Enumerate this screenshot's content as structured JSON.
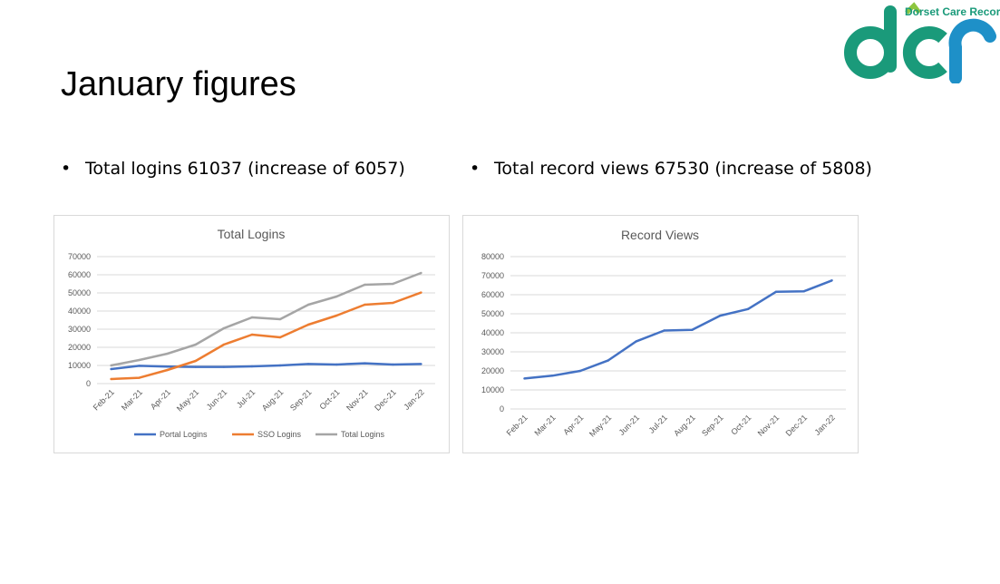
{
  "slide": {
    "title": "January figures",
    "bullets": [
      "Total logins 61037 (increase of 6057)",
      "Total record views 67530 (increase of 5808)"
    ],
    "bullet_marker": "•"
  },
  "logo": {
    "text": "Dorset Care Record",
    "colors": {
      "primary": "#1a9a7a",
      "secondary": "#1e90c8",
      "accent": "#8dc63f"
    }
  },
  "chart_data": [
    {
      "type": "line",
      "title": "Total Logins",
      "categories": [
        "Feb-21",
        "Mar-21",
        "Apr-21",
        "May-21",
        "Jun-21",
        "Jul-21",
        "Aug-21",
        "Sep-21",
        "Oct-21",
        "Nov-21",
        "Dec-21",
        "Jan-22"
      ],
      "ylim": [
        0,
        70000
      ],
      "yticks": [
        0,
        10000,
        20000,
        30000,
        40000,
        50000,
        60000,
        70000
      ],
      "grid": true,
      "legend": "bottom",
      "series": [
        {
          "name": "Portal Logins",
          "color": "#4472c4",
          "values": [
            8000,
            9800,
            9400,
            9200,
            9200,
            9500,
            10000,
            10800,
            10500,
            11200,
            10500,
            10800
          ]
        },
        {
          "name": "SSO Logins",
          "color": "#ed7d31",
          "values": [
            2500,
            3200,
            7500,
            12500,
            21500,
            27000,
            25500,
            32500,
            37500,
            43500,
            44500,
            50200
          ]
        },
        {
          "name": "Total Logins",
          "color": "#a5a5a5",
          "values": [
            10000,
            13000,
            16500,
            21500,
            30500,
            36500,
            35500,
            43500,
            48000,
            54500,
            55000,
            61000
          ]
        }
      ]
    },
    {
      "type": "line",
      "title": "Record Views",
      "categories": [
        "Feb-21",
        "Mar-21",
        "Apr-21",
        "May-21",
        "Jun-21",
        "Jul-21",
        "Aug-21",
        "Sep-21",
        "Oct-21",
        "Nov-21",
        "Dec-21",
        "Jan-22"
      ],
      "ylim": [
        0,
        80000
      ],
      "yticks": [
        0,
        10000,
        20000,
        30000,
        40000,
        50000,
        60000,
        70000,
        80000
      ],
      "grid": true,
      "legend": "none",
      "series": [
        {
          "name": "",
          "color": "#4472c4",
          "values": [
            16000,
            17500,
            20000,
            25500,
            35500,
            41200,
            41500,
            49000,
            52500,
            61500,
            61800,
            67500
          ]
        }
      ]
    }
  ]
}
